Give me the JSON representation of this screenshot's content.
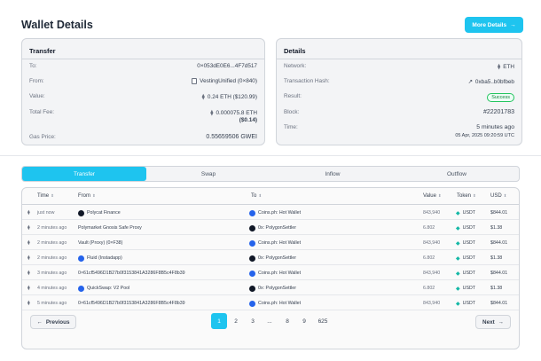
{
  "header": {
    "title": "Wallet Details",
    "more_details": "More Details",
    "more_icon": "→"
  },
  "transfer": {
    "title": "Transfer",
    "to_label": "To:",
    "to_value": "0×053dE0E6...4F7d517",
    "from_label": "From:",
    "from_value": "VestingUnified (0×840)",
    "value_label": "Value:",
    "value_value": "0.24 ETH ($120.99)",
    "fee_label": "Total Fee:",
    "fee_value": "0.000075.8 ETH",
    "fee_usd": "($0.14)",
    "gas_label": "Gas Price:",
    "gas_value": "0.55659506 GWEI"
  },
  "details": {
    "title": "Details",
    "network_label": "Network:",
    "network_value": "ETH",
    "hash_label": "Transaction Hash:",
    "hash_value": "0xba5..b0bfbeb",
    "result_label": "Result:",
    "result_value": "Success",
    "block_label": "Block:",
    "block_value": "#22201783",
    "time_label": "Time:",
    "time_value": "5 minutes ago",
    "time_full": "05 Apr, 2025 09:20:59 UTC"
  },
  "tabs": [
    "Transfer",
    "Swap",
    "Inflow",
    "Outflow"
  ],
  "table": {
    "headers": {
      "time": "Time",
      "from": "From",
      "to": "To",
      "value": "Value",
      "token": "Token",
      "usd": "USD"
    },
    "rows": [
      {
        "time": "just now",
        "from": "Polycat Finance",
        "to": "Coins.ph: Hot Wallet",
        "value": "843,940",
        "token": "USDT",
        "usd": "$844.01"
      },
      {
        "time": "2 minutes ago",
        "from": "Polymarket Gnosis Safe Proxy",
        "to": "0x: PolygonSettler",
        "value": "6.802",
        "token": "USDT",
        "usd": "$1.38"
      },
      {
        "time": "2 minutes ago",
        "from": "Vault (Proxy) (0×F38)",
        "to": "Coins.ph: Hot Wallet",
        "value": "843,940",
        "token": "USDT",
        "usd": "$844.01"
      },
      {
        "time": "2 minutes ago",
        "from": "Fluid (Instadapp)",
        "to": "0x: PolygonSettler",
        "value": "6.802",
        "token": "USDT",
        "usd": "$1.38"
      },
      {
        "time": "3 minutes ago",
        "from": "0×61cf5496D1B27b0f3153841A3286F8B5c4F8b39",
        "to": "Coins.ph: Hot Wallet",
        "value": "843,940",
        "token": "USDT",
        "usd": "$844.01"
      },
      {
        "time": "4 minutes ago",
        "from": "QuickSwap: V2 Pool",
        "to": "0x: PolygonSettler",
        "value": "6.802",
        "token": "USDT",
        "usd": "$1.38"
      },
      {
        "time": "5 minutes ago",
        "from": "0×61cf5496D1B27b0f3153841A3286F8B5c4F8b39",
        "to": "Coins.ph: Hot Wallet",
        "value": "843,940",
        "token": "USDT",
        "usd": "$844.01"
      }
    ]
  },
  "pagination": {
    "previous": "Previous",
    "next": "Next",
    "pages": [
      "1",
      "2",
      "3",
      "...",
      "8",
      "9",
      "625"
    ],
    "active": "1"
  }
}
